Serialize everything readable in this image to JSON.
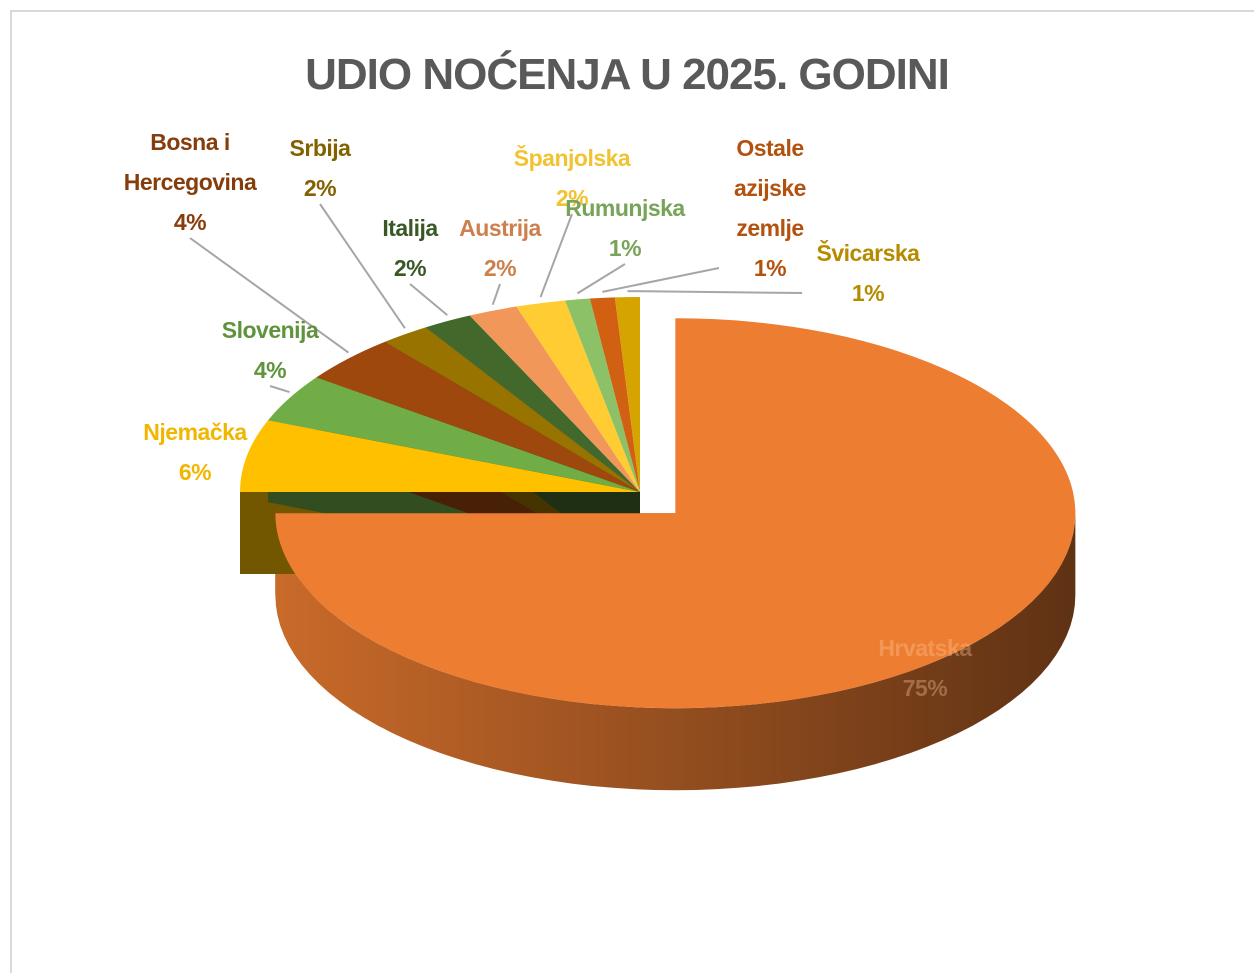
{
  "chart_data": {
    "type": "pie",
    "title": "UDIO NOĆENJA U 2025. GODINI",
    "categories": [
      "Hrvatska",
      "Njemačka",
      "Slovenija",
      "Bosna i Hercegovina",
      "Srbija",
      "Italija",
      "Austrija",
      "Španjolska",
      "Rumunjska",
      "Ostale azijske zemlje",
      "Švicarska"
    ],
    "values": [
      75,
      6,
      4,
      4,
      2,
      2,
      2,
      2,
      1,
      1,
      1
    ],
    "value_labels": [
      "75%",
      "6%",
      "4%",
      "4%",
      "2%",
      "2%",
      "2%",
      "2%",
      "1%",
      "1%",
      "1%"
    ],
    "colors": [
      "#ED7D31",
      "#FFC000",
      "#70AD47",
      "#9E480E",
      "#997300",
      "#43682B",
      "#F1975A",
      "#FFCD33",
      "#8CC168",
      "#D26012",
      "#D6A400"
    ]
  }
}
